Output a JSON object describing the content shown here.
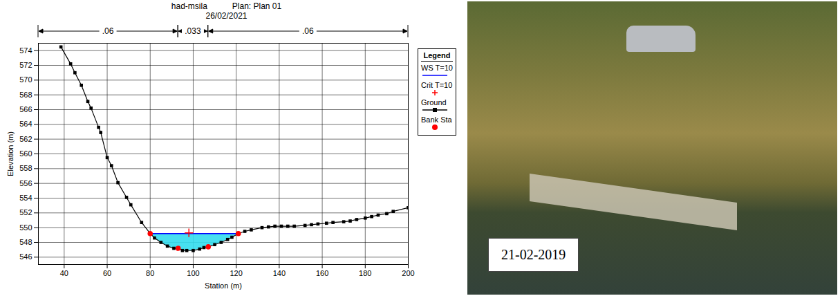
{
  "chart_data": {
    "type": "line",
    "title": "had-msila",
    "plan": "Plan: Plan 01",
    "subtitle": "26/02/2021",
    "x_label": "Station (m)",
    "y_label": "Elevation (m)",
    "xlim": [
      28,
      200
    ],
    "xticks": [
      40,
      60,
      80,
      100,
      120,
      140,
      160,
      180,
      200
    ],
    "ylim": [
      545,
      575
    ],
    "yticks": [
      546,
      548,
      550,
      552,
      554,
      556,
      558,
      560,
      562,
      564,
      566,
      568,
      570,
      572,
      574
    ],
    "grid": true,
    "legend": "top-right",
    "legend_title": "Legend",
    "manning_n": [
      {
        "from": 28,
        "to": 93,
        "value": 0.06,
        "label": ".06"
      },
      {
        "from": 93,
        "to": 107,
        "value": 0.033,
        "label": ".033"
      },
      {
        "from": 107,
        "to": 200,
        "value": 0.06,
        "label": ".06"
      }
    ],
    "series": [
      {
        "name": "WS T=10",
        "color": "#0000ff",
        "type": "line",
        "line_style": "solid",
        "x": [
          80,
          121
        ],
        "values": [
          549.2,
          549.2
        ]
      },
      {
        "name": "Crit T=10",
        "color": "#ff0000",
        "type": "scatter",
        "marker": "plus",
        "x": [
          98
        ],
        "values": [
          549.3
        ]
      },
      {
        "name": "Ground",
        "color": "#000000",
        "type": "line",
        "marker": "square",
        "line_style": "solid",
        "x": [
          38.5,
          43,
          45,
          48,
          51,
          52.5,
          56,
          57,
          60,
          62,
          65,
          69,
          71,
          76,
          80,
          82,
          85,
          88,
          91,
          93,
          95,
          97,
          100,
          103,
          105,
          107,
          110,
          113,
          116,
          118,
          121,
          124,
          127,
          132,
          135,
          138,
          141,
          144,
          147,
          152,
          155,
          158,
          162,
          165,
          170,
          173,
          176,
          180,
          183,
          186,
          190,
          193,
          200
        ],
        "values": [
          574.5,
          572.2,
          571,
          569.3,
          567.1,
          566.2,
          563.6,
          562.9,
          559.5,
          558.4,
          556.1,
          554.1,
          553.1,
          550.7,
          549.2,
          548.6,
          548,
          547.5,
          547.2,
          547.2,
          546.9,
          546.9,
          546.9,
          547.1,
          547.3,
          547.4,
          547.7,
          548,
          548.4,
          548.7,
          549.2,
          549.5,
          549.7,
          550,
          550.1,
          550.2,
          550.2,
          550.2,
          550.2,
          550.3,
          550.4,
          550.5,
          550.6,
          550.7,
          550.8,
          550.9,
          551.1,
          551.3,
          551.5,
          551.7,
          551.9,
          552.2,
          552.7
        ]
      },
      {
        "name": "Bank Sta",
        "color": "#ff0000",
        "type": "scatter",
        "marker": "circle",
        "x": [
          80,
          93,
          107,
          121
        ],
        "values": [
          549.2,
          547.2,
          547.4,
          549.2
        ]
      }
    ]
  },
  "photo": {
    "label": "21-02-2019"
  }
}
